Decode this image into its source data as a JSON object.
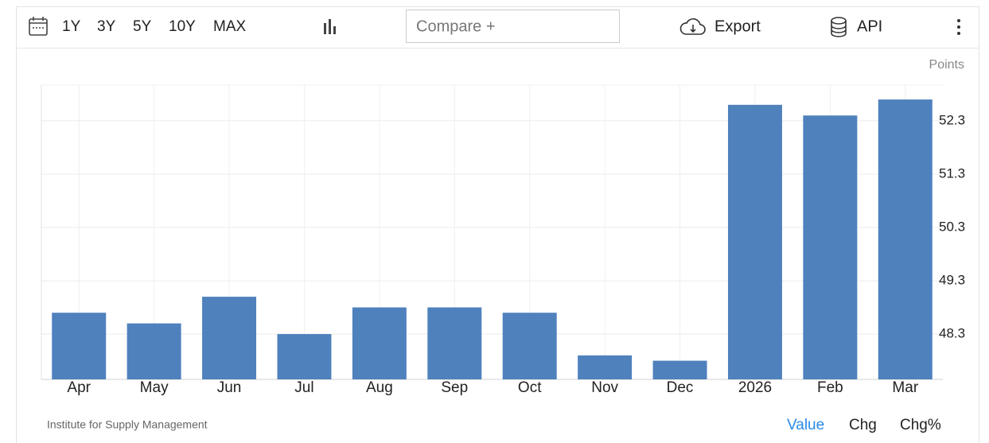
{
  "toolbar": {
    "ranges": [
      "1Y",
      "3Y",
      "5Y",
      "10Y",
      "MAX"
    ],
    "compare_placeholder": "Compare +",
    "export": "Export",
    "api": "API"
  },
  "chart_data": {
    "type": "bar",
    "y_label": "Points",
    "source": "Institute for Supply Management",
    "categories": [
      "Apr",
      "May",
      "Jun",
      "Jul",
      "Aug",
      "Sep",
      "Oct",
      "Nov",
      "Dec",
      "2026",
      "Feb",
      "Mar"
    ],
    "values": [
      48.7,
      48.5,
      49.0,
      48.3,
      48.8,
      48.8,
      48.7,
      47.9,
      47.8,
      52.6,
      52.4,
      52.7
    ],
    "color": "#4f81bd",
    "ylim": [
      47.45,
      52.97
    ],
    "yticks": [
      48.3,
      49.3,
      50.3,
      51.3,
      52.3
    ],
    "grid": true
  },
  "view_tabs": {
    "tabs": [
      "Value",
      "Chg",
      "Chg%"
    ],
    "active": "Value"
  }
}
